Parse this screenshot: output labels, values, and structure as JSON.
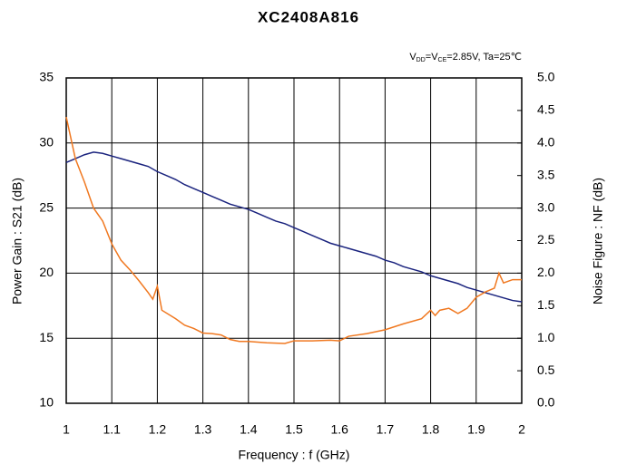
{
  "chart_data": {
    "type": "line",
    "title": "XC2408A816",
    "annotation": [
      "V",
      "DD",
      "=V",
      "CE",
      "=2.85V, Ta=25℃"
    ],
    "xlabel": "Frequency : f (GHz)",
    "ylabel": "Power Gain : S21 (dB)",
    "y2label": "Noise Figure : NF (dB)",
    "xlim": [
      1,
      2
    ],
    "xticks": [
      1,
      1.1,
      1.2,
      1.3,
      1.4,
      1.5,
      1.6,
      1.7,
      1.8,
      1.9,
      2
    ],
    "ylim": [
      10,
      35
    ],
    "yticks": [
      10,
      15,
      20,
      25,
      30,
      35
    ],
    "y2lim": [
      0,
      5
    ],
    "y2ticks": [
      {
        "value": 0,
        "label": "0.0"
      },
      {
        "value": 0.5,
        "label": "0.5"
      },
      {
        "value": 1,
        "label": "1.0"
      },
      {
        "value": 1.5,
        "label": "1.5"
      },
      {
        "value": 2,
        "label": "2.0"
      },
      {
        "value": 2.5,
        "label": "2.5"
      },
      {
        "value": 3,
        "label": "3.0"
      },
      {
        "value": 3.5,
        "label": "3.5"
      },
      {
        "value": 4,
        "label": "4.0"
      },
      {
        "value": 4.5,
        "label": "4.5"
      },
      {
        "value": 5,
        "label": "5.0"
      }
    ],
    "grid": true,
    "series": [
      {
        "color": "#1a237e",
        "axis": "y",
        "x": [
          1,
          1.02,
          1.04,
          1.06,
          1.08,
          1.1,
          1.12,
          1.14,
          1.16,
          1.18,
          1.2,
          1.22,
          1.24,
          1.26,
          1.28,
          1.3,
          1.32,
          1.34,
          1.36,
          1.38,
          1.4,
          1.42,
          1.44,
          1.46,
          1.48,
          1.5,
          1.52,
          1.54,
          1.56,
          1.58,
          1.6,
          1.62,
          1.64,
          1.66,
          1.68,
          1.7,
          1.72,
          1.74,
          1.76,
          1.78,
          1.8,
          1.82,
          1.84,
          1.86,
          1.88,
          1.9,
          1.92,
          1.94,
          1.96,
          1.98,
          2
        ],
        "values": [
          28.5,
          28.8,
          29.1,
          29.3,
          29.2,
          29.0,
          28.8,
          28.6,
          28.4,
          28.2,
          27.8,
          27.5,
          27.2,
          26.8,
          26.5,
          26.2,
          25.9,
          25.6,
          25.3,
          25.1,
          24.9,
          24.6,
          24.3,
          24.0,
          23.8,
          23.5,
          23.2,
          22.9,
          22.6,
          22.3,
          22.1,
          21.9,
          21.7,
          21.5,
          21.3,
          21.0,
          20.8,
          20.5,
          20.3,
          20.1,
          19.8,
          19.6,
          19.4,
          19.2,
          18.9,
          18.7,
          18.5,
          18.3,
          18.1,
          17.9,
          17.8
        ]
      },
      {
        "color": "#f07820",
        "axis": "y2",
        "x": [
          1,
          1.02,
          1.04,
          1.06,
          1.08,
          1.1,
          1.12,
          1.14,
          1.16,
          1.18,
          1.19,
          1.2,
          1.21,
          1.24,
          1.26,
          1.28,
          1.3,
          1.32,
          1.34,
          1.36,
          1.38,
          1.4,
          1.44,
          1.48,
          1.5,
          1.54,
          1.58,
          1.6,
          1.62,
          1.66,
          1.7,
          1.74,
          1.78,
          1.8,
          1.81,
          1.82,
          1.84,
          1.86,
          1.88,
          1.9,
          1.92,
          1.94,
          1.95,
          1.96,
          1.98,
          2
        ],
        "values": [
          4.4,
          3.76,
          3.4,
          3.0,
          2.8,
          2.45,
          2.2,
          2.05,
          1.88,
          1.7,
          1.6,
          1.8,
          1.43,
          1.3,
          1.2,
          1.15,
          1.08,
          1.07,
          1.05,
          0.98,
          0.95,
          0.95,
          0.93,
          0.92,
          0.96,
          0.96,
          0.97,
          0.96,
          1.03,
          1.07,
          1.13,
          1.22,
          1.3,
          1.43,
          1.35,
          1.43,
          1.46,
          1.38,
          1.46,
          1.63,
          1.71,
          1.77,
          2.0,
          1.85,
          1.9,
          1.9
        ]
      }
    ]
  }
}
